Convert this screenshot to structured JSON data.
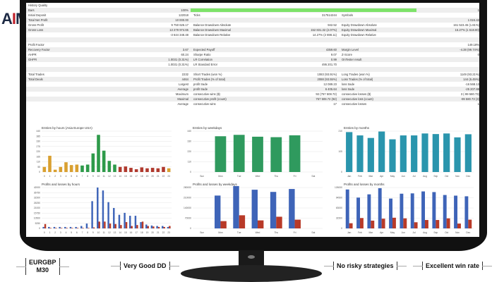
{
  "logo": "AIM",
  "report": {
    "rows": [
      [
        "History Quality",
        "",
        "",
        "",
        "",
        ""
      ],
      [
        "Bars",
        "100%",
        "__bar",
        "",
        "",
        "1"
      ],
      [
        "Initial Deposit",
        "122018",
        "Ticks",
        "317514244",
        "Symbols",
        ""
      ],
      [
        "Total Net Profit",
        "10 000.00",
        "",
        "",
        "",
        "1 024.42"
      ],
      [
        "Gross Profit",
        "9 750 626.17",
        "Balance Drawdown Absolute",
        "942.52",
        "Equity Drawdown Absolute",
        "161 523.45 (1.81%)"
      ],
      [
        "Gross Loss",
        "13 279 974.65",
        "Balance Drawdown Maximal",
        "152 831.32 (2.07%)",
        "Equity Drawdown Maximal",
        "15.27% (1 618.00)"
      ],
      [
        "",
        "-3 644 348.48",
        "Balance Drawdown Relative",
        "14.27% (2 698.11)",
        "Equity Drawdown Relative",
        ""
      ],
      [
        "",
        "",
        "",
        "",
        "",
        ""
      ],
      [
        "Profit Factor",
        "",
        "",
        "",
        "",
        "149.18%"
      ],
      [
        "Recovery Factor",
        "3.67",
        "Expected Payoff",
        "4359.60",
        "Margin Level",
        "-4.38 (99.74%)"
      ],
      [
        "AHPR",
        "60.24",
        "Sharpe Ratio",
        "9.07",
        "Z-Score",
        "0"
      ],
      [
        "GHPR",
        "1.0031 (0.31%)",
        "LR Correlation",
        "0.99",
        "OnTester result",
        ""
      ],
      [
        "",
        "1.0031 (0.31%)",
        "LR Standard Error",
        "495 201.70",
        "",
        ""
      ],
      [
        "",
        "",
        "",
        "",
        "",
        ""
      ],
      [
        "Total Trades",
        "2232",
        "Short Trades (won %)",
        "1083 (93.91%)",
        "Long Trades (won %)",
        "1149 (93.21%)"
      ],
      [
        "Total Deals",
        "4464",
        "Profit Trades (% of total)",
        "2088 (93.55%)",
        "Loss Trades (% of total)",
        "144 (6.45%)"
      ],
      [
        "",
        "Largest",
        "profit trade",
        "12 089.23",
        "loss trade",
        "-16 568.13"
      ],
      [
        "",
        "Average",
        "profit trade",
        "6 405.64",
        "loss trade",
        "-25 207.88"
      ],
      [
        "",
        "Maximum",
        "consecutive wins ($)",
        "92 (757 508.72)",
        "consecutive losses ($)",
        "3 (-99 580.73)"
      ],
      [
        "",
        "Maximal",
        "consecutive profit (count)",
        "757 508.72 (92)",
        "consecutive loss (count)",
        "-99 580.73 (3)"
      ],
      [
        "",
        "Average",
        "consecutive wins",
        "17",
        "consecutive losses",
        "1"
      ]
    ]
  },
  "chart_data": [
    {
      "type": "bar",
      "title": "Entries by hours (Asia Europe USA)",
      "categories": [
        "0",
        "1",
        "2",
        "3",
        "4",
        "5",
        "6",
        "7",
        "8",
        "9",
        "10",
        "11",
        "12",
        "13",
        "14",
        "15",
        "16",
        "17",
        "18",
        "19",
        "20",
        "21",
        "22",
        "23"
      ],
      "ylim": [
        0,
        440
      ],
      "yticks": [
        0,
        55,
        110,
        165,
        220,
        275,
        330,
        385,
        440
      ],
      "series": [
        {
          "values": [
            55,
            175,
            25,
            55,
            105,
            75,
            80,
            70,
            80,
            200,
            400,
            230,
            120,
            80,
            55,
            60,
            45,
            30,
            50,
            40,
            45,
            40,
            55,
            40
          ],
          "colors": [
            "#d9a030",
            "#d9a030",
            "#d9a030",
            "#d9a030",
            "#d9a030",
            "#d9a030",
            "#d9a030",
            "#2e9a4a",
            "#2e9a4a",
            "#2e9a4a",
            "#2e9a4a",
            "#2e9a4a",
            "#2e9a4a",
            "#2e9a4a",
            "#b03a2e",
            "#b03a2e",
            "#b03a2e",
            "#b03a2e",
            "#b03a2e",
            "#b03a2e",
            "#b03a2e",
            "#b03a2e",
            "#b03a2e",
            "#d9a030"
          ]
        }
      ]
    },
    {
      "type": "bar",
      "title": "Profits and losses by hours",
      "categories": [
        "0",
        "1",
        "2",
        "3",
        "4",
        "5",
        "6",
        "7",
        "8",
        "9",
        "10",
        "11",
        "12",
        "13",
        "14",
        "15",
        "16",
        "17",
        "18",
        "19",
        "20",
        "21",
        "22",
        "23"
      ],
      "ylim": [
        0,
        42000
      ],
      "yticks": [
        0,
        5250,
        10500,
        15750,
        21000,
        26250,
        31500,
        36750,
        42000
      ],
      "series": [
        {
          "values": [
            1500,
            1500,
            1500,
            1500,
            1500,
            1500,
            1500,
            2500,
            5000,
            28000,
            42000,
            39000,
            27000,
            21000,
            14000,
            16000,
            13000,
            13000,
            6500,
            4000,
            3000,
            2500,
            2500,
            1500
          ],
          "color": "#3e64b8"
        },
        {
          "values": [
            4500,
            500,
            500,
            500,
            500,
            500,
            500,
            500,
            500,
            1000,
            7000,
            7000,
            5000,
            4500,
            3500,
            6500,
            2500,
            3500,
            7000,
            2500,
            2000,
            1500,
            1500,
            2500
          ],
          "color": "#b83a28"
        }
      ]
    },
    {
      "type": "bar",
      "title": "Entries by weekdays",
      "categories": [
        "Sun",
        "Mon",
        "Tue",
        "Wed",
        "Thu",
        "Fri",
        "Sat"
      ],
      "ylim": [
        0,
        440
      ],
      "yticks": [
        0,
        110,
        220,
        330,
        440
      ],
      "series": [
        {
          "values": [
            0,
            385,
            400,
            380,
            375,
            395,
            0
          ],
          "color": "#2f9a5e"
        }
      ]
    },
    {
      "type": "bar",
      "title": "Profits and losses by weekdays",
      "categories": [
        "Sun",
        "Mon",
        "Tue",
        "Wed",
        "Thu",
        "Fri",
        "Sat"
      ],
      "ylim": [
        0,
        280000
      ],
      "yticks": [
        0,
        70000,
        140000,
        210000,
        280000
      ],
      "series": [
        {
          "values": [
            0,
            225000,
            290000,
            265000,
            250000,
            270000,
            0
          ],
          "color": "#3e64b8"
        },
        {
          "values": [
            0,
            50000,
            90000,
            55000,
            80000,
            60000,
            0
          ],
          "color": "#b83a28"
        }
      ]
    },
    {
      "type": "bar",
      "title": "Entries by months",
      "categories": [
        "Jan",
        "Feb",
        "Mar",
        "Apr",
        "May",
        "Jun",
        "Jul",
        "Aug",
        "Sep",
        "Oct",
        "Nov",
        "Dec"
      ],
      "ylim": [
        0,
        210
      ],
      "yticks": [
        0,
        105,
        210
      ],
      "series": [
        {
          "values": [
            205,
            188,
            175,
            208,
            168,
            188,
            188,
            198,
            195,
            198,
            178,
            194
          ],
          "color": "#2a95ad"
        }
      ]
    },
    {
      "type": "bar",
      "title": "Profits and losses by months",
      "categories": [
        "Jan",
        "Feb",
        "Mar",
        "Apr",
        "May",
        "Jun",
        "Jul",
        "Aug",
        "Sep",
        "Oct",
        "Nov",
        "Dec"
      ],
      "ylim": [
        0,
        126000
      ],
      "yticks": [
        0,
        31500,
        63000,
        94500,
        126000
      ],
      "series": [
        {
          "values": [
            120000,
            95000,
            105000,
            124000,
            92000,
            107000,
            108000,
            114000,
            112000,
            103000,
            101000,
            99000
          ],
          "color": "#3e64b8"
        },
        {
          "values": [
            16000,
            32000,
            24000,
            30000,
            33000,
            31000,
            19000,
            26000,
            26000,
            31000,
            15000,
            27000
          ],
          "color": "#b83a28"
        }
      ]
    }
  ],
  "badges": {
    "pair": "EURGBP",
    "timeframe": "M30",
    "drawdown": "Very Good DD",
    "risk": "No risky strategies",
    "winrate": "Excellent win rate"
  }
}
